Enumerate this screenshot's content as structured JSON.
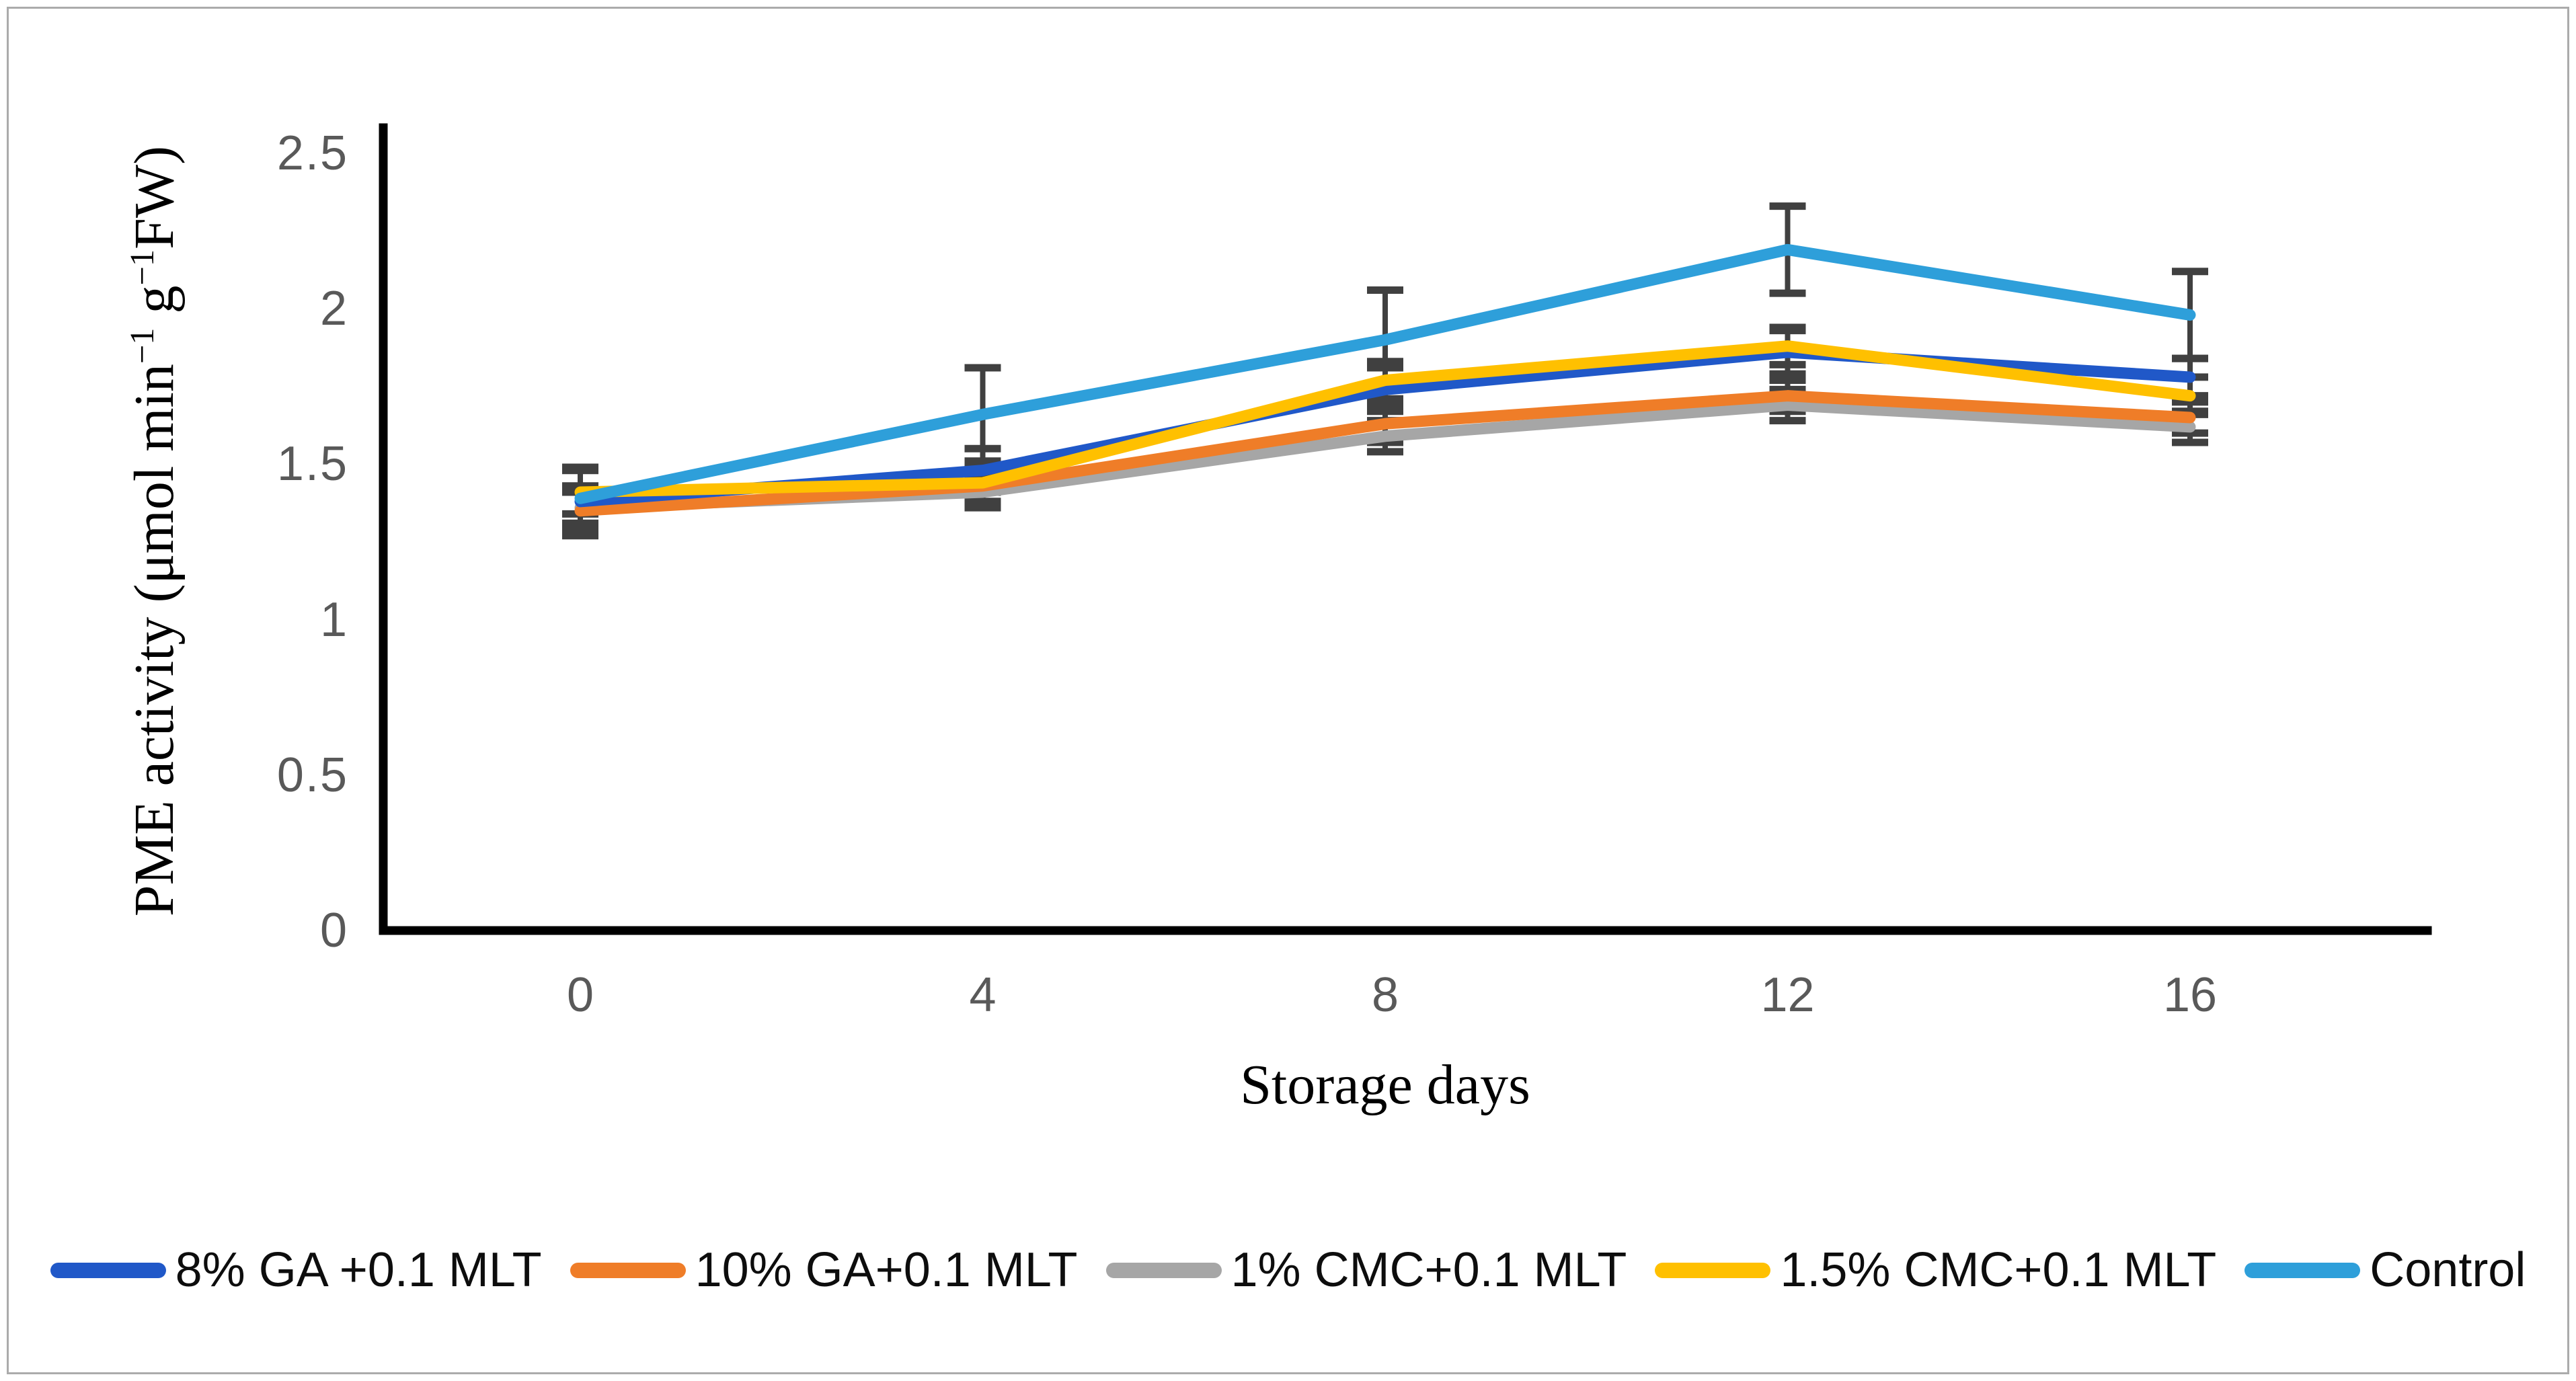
{
  "figure": {
    "kind": "line-chart-with-error-bars",
    "background": "#ffffff",
    "border_color": "#ababab"
  },
  "chart_data": {
    "type": "line",
    "title": "",
    "xlabel": "Storage days",
    "ylabel": "PME activity (μmol min⁻¹ g⁻¹FW)",
    "ylabel_parts": {
      "p1": "PME activity (μmol min",
      "sup1": "−1",
      "p2": " g",
      "sup2": "−1",
      "p3": "FW)"
    },
    "x": [
      0,
      4,
      8,
      12,
      16
    ],
    "x_tick_labels": [
      "0",
      "4",
      "8",
      "12",
      "16"
    ],
    "y_ticks": [
      0,
      0.5,
      1,
      1.5,
      2,
      2.5
    ],
    "y_tick_labels": [
      "0",
      "0.5",
      "1",
      "1.5",
      "2",
      "2.5"
    ],
    "ylim": [
      0,
      2.5
    ],
    "grid": false,
    "legend_position": "bottom",
    "axis_color": "#000000",
    "tick_label_color": "#595959",
    "error_bar_color": "#404040",
    "series": [
      {
        "name": "8% GA +0.1 MLT",
        "color": "#2058C8",
        "values": [
          1.38,
          1.48,
          1.74,
          1.86,
          1.78
        ],
        "errors": [
          0.1,
          0.07,
          0.07,
          0.07,
          0.06
        ]
      },
      {
        "name": "10% GA+0.1 MLT",
        "color": "#EF7D28",
        "values": [
          1.35,
          1.43,
          1.63,
          1.72,
          1.65
        ],
        "errors": [
          0.08,
          0.05,
          0.06,
          0.05,
          0.05
        ]
      },
      {
        "name": "1% CMC+0.1 MLT",
        "color": "#A6A6A6",
        "values": [
          1.36,
          1.41,
          1.59,
          1.69,
          1.62
        ],
        "errors": [
          0.05,
          0.05,
          0.05,
          0.05,
          0.05
        ]
      },
      {
        "name": "1.5% CMC+0.1 MLT",
        "color": "#FFC000",
        "values": [
          1.41,
          1.44,
          1.77,
          1.88,
          1.72
        ],
        "errors": [
          0.07,
          0.06,
          0.06,
          0.06,
          0.06
        ]
      },
      {
        "name": "Control",
        "color": "#2E9FDA",
        "values": [
          1.39,
          1.66,
          1.9,
          2.19,
          1.98
        ],
        "errors": [
          0.1,
          0.15,
          0.16,
          0.14,
          0.14
        ]
      }
    ],
    "draw_order": [
      2,
      1,
      0,
      3,
      4
    ]
  }
}
